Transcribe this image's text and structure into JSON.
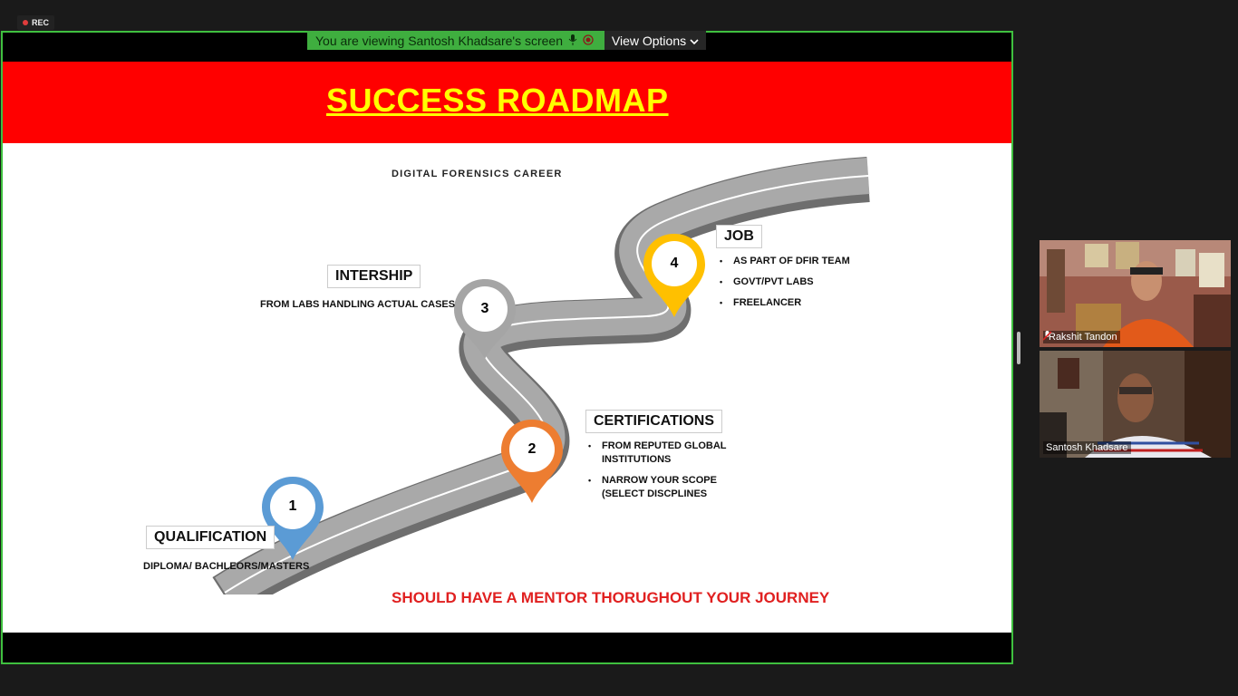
{
  "recording": {
    "label": "REC"
  },
  "share_banner": {
    "text": "You are viewing Santosh Khadsare's screen",
    "view_options": "View Options"
  },
  "slide": {
    "title": "SUCCESS ROADMAP",
    "subtitle": "DIGITAL FORENSICS CAREER",
    "steps": [
      {
        "number": "1",
        "label": "QUALIFICATION",
        "detail": "DIPLOMA/ BACHLEORS/MASTERS",
        "color": "#5b9bd5"
      },
      {
        "number": "2",
        "label": "CERTIFICATIONS",
        "bullets": [
          "FROM REPUTED GLOBAL INSTITUTIONS",
          "NARROW YOUR SCOPE (SELECT DISCPLINES"
        ],
        "color": "#ed7d31"
      },
      {
        "number": "3",
        "label": "INTERSHIP",
        "detail": "FROM LABS HANDLING ACTUAL CASES",
        "color": "#a5a5a5"
      },
      {
        "number": "4",
        "label": "JOB",
        "bullets": [
          "AS PART OF DFIR TEAM",
          "GOVT/PVT LABS",
          "FREELANCER"
        ],
        "color": "#ffc000"
      }
    ],
    "footer": "SHOULD HAVE A MENTOR THORUGHOUT YOUR JOURNEY"
  },
  "participants": [
    {
      "name": "Rakshit Tandon",
      "muted": true
    },
    {
      "name": "Santosh Khadsare",
      "muted": false
    }
  ],
  "colors": {
    "banner_green": "#3fae3f",
    "header_red": "#ff0000",
    "title_yellow": "#ffff00",
    "frame_green": "#3fc03f"
  }
}
